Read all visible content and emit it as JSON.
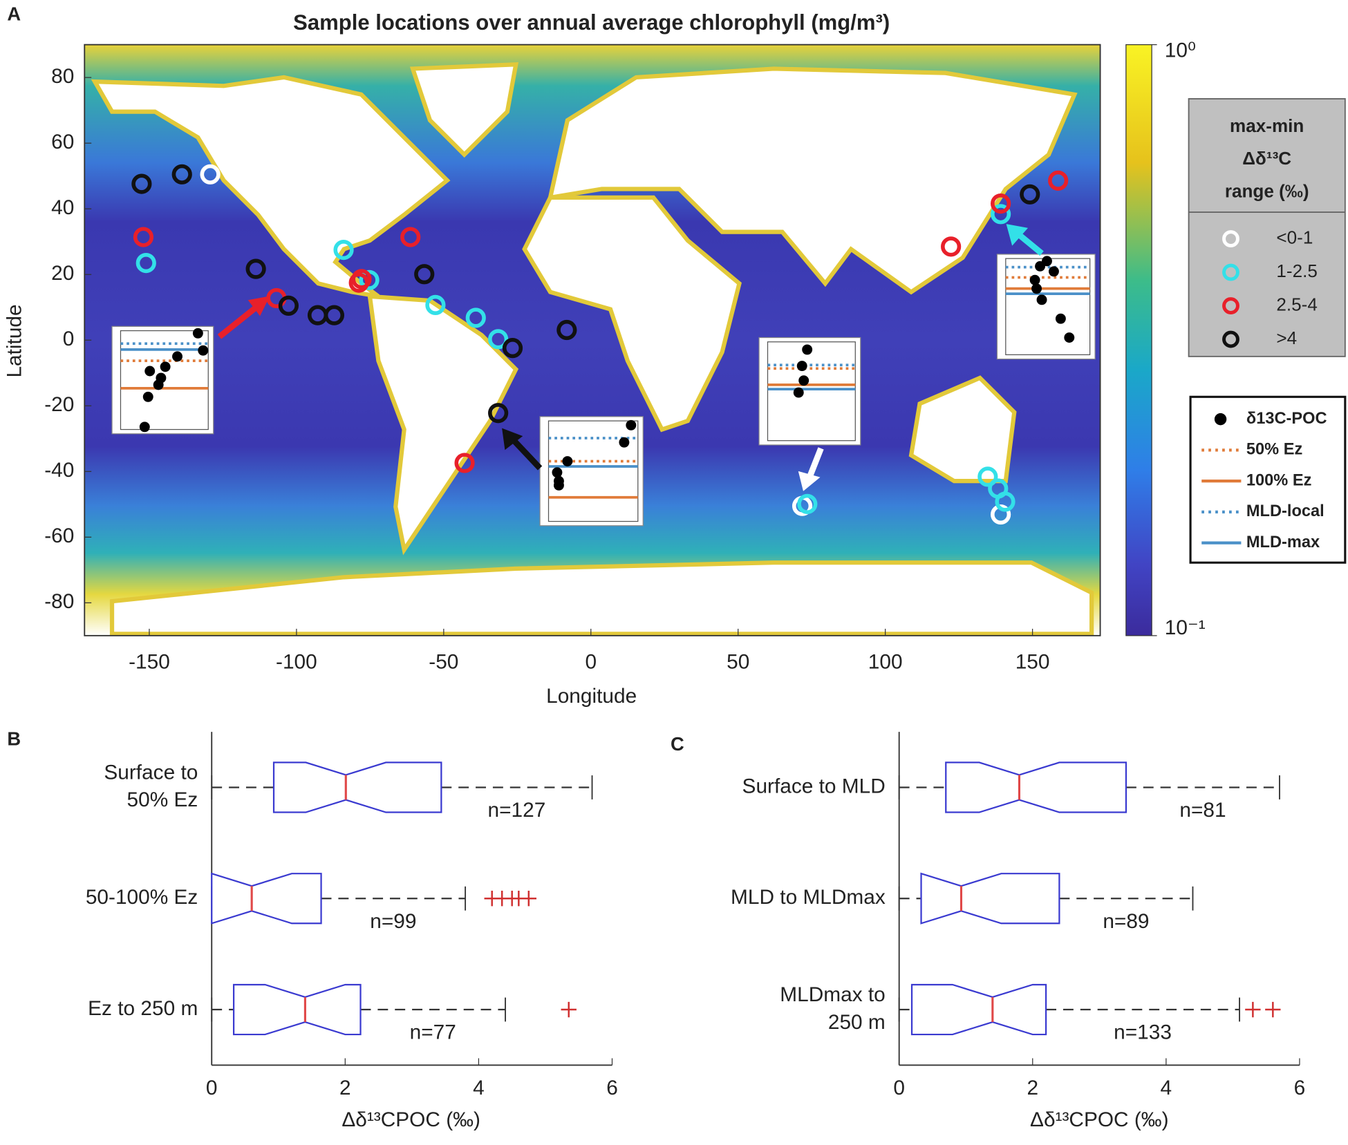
{
  "chart_data": [
    {
      "type": "scatter",
      "panel": "A",
      "title": "Sample locations over annual average chlorophyll (mg/m³)",
      "x_label": "Longitude",
      "y_label": "Latitude",
      "xlim": [
        -172,
        173
      ],
      "ylim": [
        -90,
        90
      ],
      "xticks": [
        -150,
        -100,
        -50,
        0,
        50,
        100,
        150
      ],
      "yticks": [
        80,
        60,
        40,
        20,
        0,
        -20,
        -40,
        -60,
        -80
      ],
      "legend_title": [
        "max-min",
        "Δδ¹³C",
        "range (‰)"
      ],
      "series": [
        {
          "name": "<0-1",
          "color": "#ffffff",
          "x": [
            -129.3,
            71.8,
            139.2
          ],
          "y": [
            50.5,
            -50.5,
            -53.1
          ]
        },
        {
          "name": "1-2.5",
          "color": "#33e0e8",
          "x": [
            -151.1,
            -84,
            -75.3,
            -52.8,
            -39.1,
            -31.5,
            73.5,
            134.8,
            138.3,
            140.7,
            139.2
          ],
          "y": [
            23.5,
            27.5,
            18.3,
            10.7,
            6.8,
            0.3,
            -49.9,
            -41.6,
            -45.2,
            -49.2,
            38.4
          ]
        },
        {
          "name": "2.5-4",
          "color": "#e8202a",
          "x": [
            -152,
            -61.3,
            -106.8,
            -78.8,
            -77.9,
            122.3,
            139.2,
            158.7,
            -42.9
          ],
          "y": [
            31.4,
            31.4,
            12.8,
            17.5,
            18.6,
            28.5,
            41.6,
            48.6,
            -37.4
          ]
        },
        {
          "name": ">4",
          "color": "#111111",
          "x": [
            -152.6,
            -138.9,
            -113.8,
            -102.7,
            -92.8,
            -87.2,
            -56.6,
            -8.2,
            -26.6,
            -31.5,
            149.1
          ],
          "y": [
            47.6,
            50.5,
            21.7,
            10.5,
            7.6,
            7.6,
            20.1,
            3.1,
            -2.4,
            -22.2,
            44.4
          ]
        }
      ],
      "colorbar": {
        "lim": [
          0.1,
          1
        ],
        "log_scale": true,
        "ticks": [
          {
            "value": 1,
            "label": "10⁰"
          },
          {
            "value": 0.1,
            "label": "10⁻¹"
          }
        ]
      },
      "inset_legend": [
        {
          "name": "δ13C-POC",
          "color": "#000000",
          "style": "dot"
        },
        {
          "name": "50% Ez",
          "color": "#e07b39",
          "style": "dotted"
        },
        {
          "name": "100% Ez",
          "color": "#e07b39",
          "style": "solid"
        },
        {
          "name": "MLD-local",
          "color": "#4a90c8",
          "style": "dotted"
        },
        {
          "name": "MLD-max",
          "color": "#4a90c8",
          "style": "solid"
        }
      ]
    },
    {
      "type": "boxplot",
      "panel": "B",
      "x_label": "Δδ¹³CPOC (‰)",
      "xlim": [
        0,
        6
      ],
      "xticks": [
        0,
        2,
        4,
        6
      ],
      "categories": [
        [
          "Surface to",
          "50% Ez"
        ],
        [
          "50-100% Ez"
        ],
        [
          "Ez to 250 m"
        ]
      ],
      "boxes": [
        {
          "whislo": 0,
          "q1": 0.93,
          "med": 2.01,
          "q3": 3.44,
          "whishi": 5.7,
          "fliers": [],
          "n_label": "n=127"
        },
        {
          "whislo": 0,
          "q1": 0,
          "med": 0.6,
          "q3": 1.64,
          "whishi": 3.8,
          "fliers": [
            4.2,
            4.35,
            4.5,
            4.6,
            4.75
          ],
          "n_label": "n=99"
        },
        {
          "whislo": 0,
          "q1": 0.33,
          "med": 1.4,
          "q3": 2.23,
          "whishi": 4.4,
          "fliers": [
            5.35
          ],
          "n_label": "n=77"
        }
      ]
    },
    {
      "type": "boxplot",
      "panel": "C",
      "x_label": "Δδ¹³CPOC (‰)",
      "xlim": [
        0,
        6
      ],
      "xticks": [
        0,
        2,
        4,
        6
      ],
      "categories": [
        [
          "Surface to MLD"
        ],
        [
          "MLD to MLDmax"
        ],
        [
          "MLDmax to",
          "250 m"
        ]
      ],
      "boxes": [
        {
          "whislo": 0,
          "q1": 0.7,
          "med": 1.8,
          "q3": 3.4,
          "whishi": 5.7,
          "fliers": [],
          "n_label": "n=81"
        },
        {
          "whislo": 0,
          "q1": 0.33,
          "med": 0.93,
          "q3": 2.4,
          "whishi": 4.4,
          "fliers": [],
          "n_label": "n=89"
        },
        {
          "whislo": 0,
          "q1": 0.19,
          "med": 1.4,
          "q3": 2.2,
          "whishi": 5.1,
          "fliers": [
            5.3,
            5.6
          ],
          "n_label": "n=133"
        }
      ]
    }
  ]
}
